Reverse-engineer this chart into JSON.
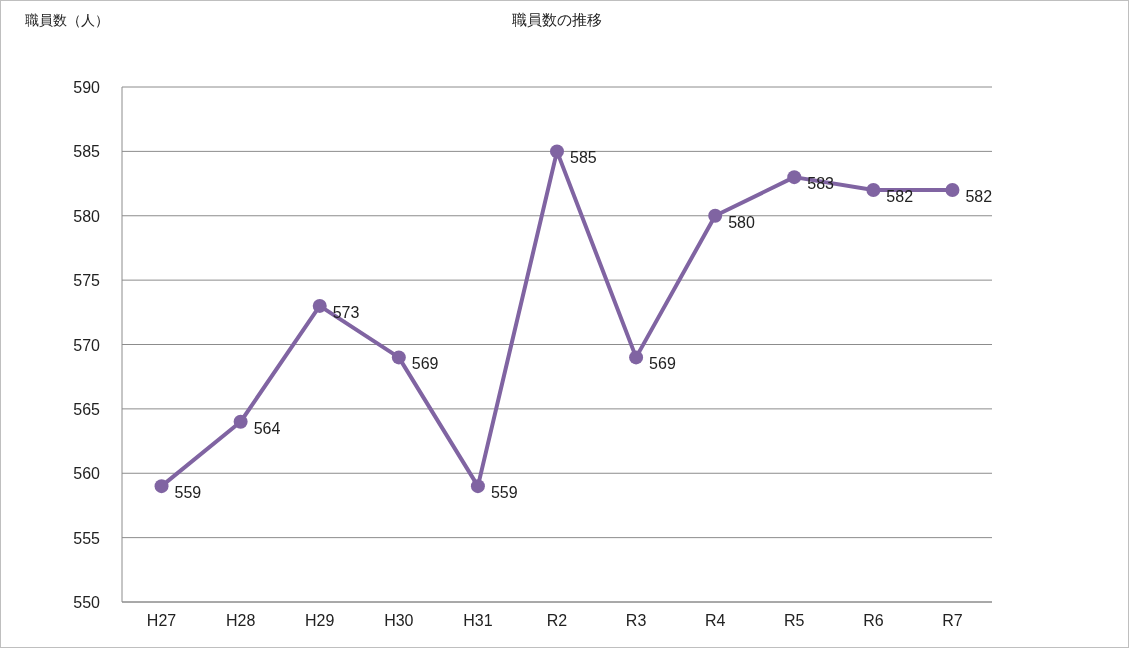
{
  "chart_data": {
    "type": "line",
    "title": "職員数の推移",
    "ylabel": "職員数（人）",
    "categories": [
      "H27",
      "H28",
      "H29",
      "H30",
      "H31",
      "R2",
      "R3",
      "R4",
      "R5",
      "R6",
      "R7"
    ],
    "values": [
      559,
      564,
      573,
      569,
      559,
      585,
      569,
      580,
      583,
      582,
      582
    ],
    "color": "#8064a2",
    "ylim": [
      550,
      590
    ],
    "yticks": [
      550,
      555,
      560,
      565,
      570,
      575,
      580,
      585,
      590
    ],
    "grid": "y",
    "marker": "circle",
    "line_style": "solid",
    "data_labels": true
  }
}
